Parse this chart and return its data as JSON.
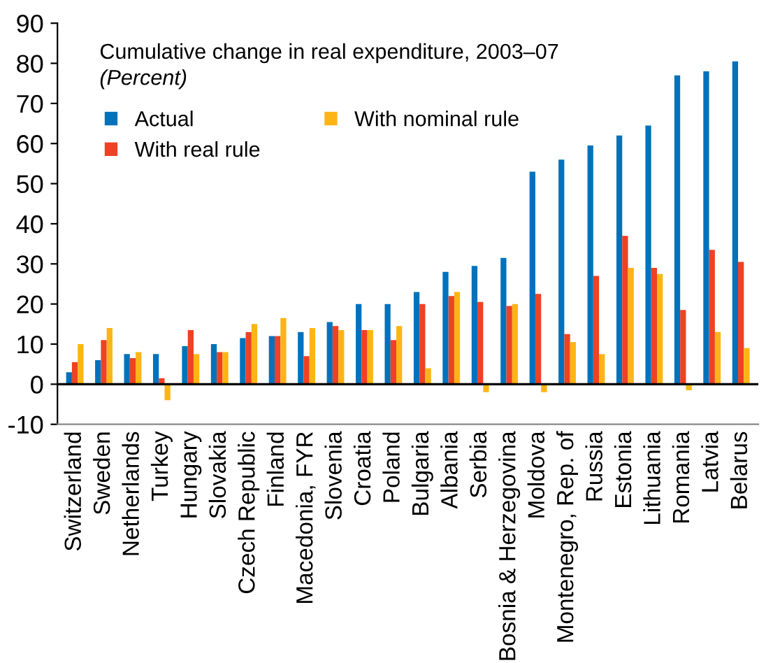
{
  "chart_data": {
    "type": "bar",
    "title": "Cumulative change in real expenditure, 2003–07",
    "subtitle": "(Percent)",
    "categories": [
      "Switzerland",
      "Sweden",
      "Netherlands",
      "Turkey",
      "Hungary",
      "Slovakia",
      "Czech Republic",
      "Finland",
      "Macedonia, FYR",
      "Slovenia",
      "Croatia",
      "Poland",
      "Bulgaria",
      "Albania",
      "Serbia",
      "Bosnia & Herzegovina",
      "Moldova",
      "Montenegro, Rep. of",
      "Russia",
      "Estonia",
      "Lithuania",
      "Romania",
      "Latvia",
      "Belarus"
    ],
    "series": [
      {
        "name": "Actual",
        "color": "#0072bc",
        "values": [
          3,
          6,
          7.5,
          7.5,
          9.5,
          10,
          11.5,
          12,
          13,
          15.5,
          20,
          20,
          23,
          28,
          29.5,
          31.5,
          53,
          56,
          59.5,
          62,
          64.5,
          77,
          78,
          80.5
        ]
      },
      {
        "name": "With real rule",
        "color": "#ef4123",
        "values": [
          5.5,
          11,
          6.5,
          1.5,
          13.5,
          8,
          13,
          12,
          7,
          14.5,
          13.5,
          11,
          20,
          22,
          20.5,
          19.5,
          22.5,
          12.5,
          27,
          37,
          29,
          18.5,
          33.5,
          30.5
        ]
      },
      {
        "name": "With nominal rule",
        "color": "#fdb515",
        "values": [
          10,
          14,
          8,
          -4,
          7.5,
          8,
          15,
          16.5,
          14,
          13.5,
          13.5,
          14.5,
          4,
          23,
          -2,
          20,
          -2,
          10.5,
          7.5,
          29,
          27.5,
          -1.5,
          13,
          9
        ]
      }
    ],
    "ylim": [
      -10,
      90
    ],
    "yticks": [
      -10,
      0,
      10,
      20,
      30,
      40,
      50,
      60,
      70,
      80,
      90
    ],
    "ref_lines": [
      {
        "axis": "y",
        "value": 0,
        "color": "#000000"
      }
    ],
    "grid": false,
    "legend": "top left"
  }
}
